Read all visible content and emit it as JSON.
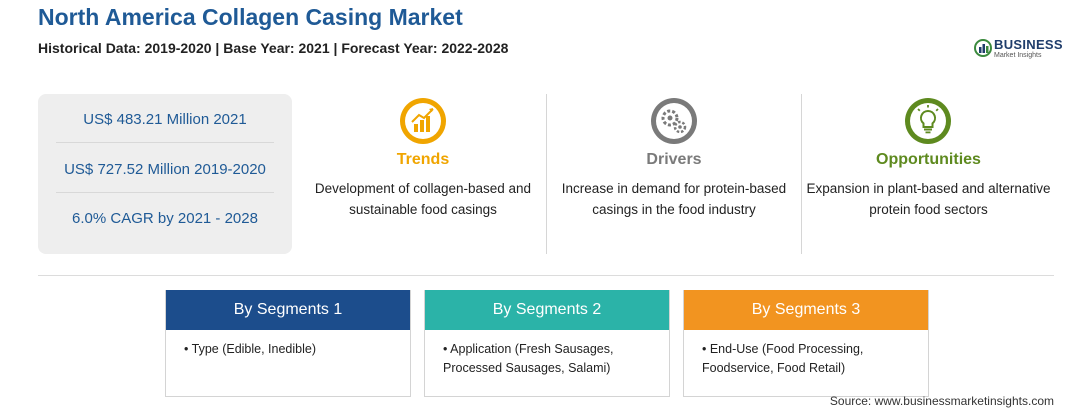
{
  "header": {
    "title": "North America Collagen Casing Market",
    "subtitle": "Historical Data: 2019-2020 | Base Year: 2021 | Forecast Year: 2022-2028"
  },
  "logo": {
    "name": "BUSINESS",
    "tagline": "Market Insights"
  },
  "stats": [
    "US$ 483.21 Million 2021",
    "US$ 727.52 Million 2019-2020",
    "6.0% CAGR by 2021 - 2028"
  ],
  "columns": [
    {
      "label": "Trends",
      "text": "Development of collagen-based and sustainable food casings",
      "color": "#f0a500",
      "icon": "trend-chart-icon"
    },
    {
      "label": "Drivers",
      "text": "Increase in demand for protein-based casings in the food industry",
      "color": "#7a7a7a",
      "icon": "gears-icon"
    },
    {
      "label": "Opportunities",
      "text": "Expansion in plant-based and alternative protein food sectors",
      "color": "#5e8a1f",
      "icon": "lightbulb-icon"
    }
  ],
  "segments": [
    {
      "title": "By Segments 1",
      "text": "• Type (Edible, Inedible)",
      "color": "#1c4d8c"
    },
    {
      "title": "By Segments 2",
      "text": "• Application (Fresh Sausages, Processed Sausages, Salami)",
      "color": "#2bb3a8"
    },
    {
      "title": "By Segments 3",
      "text": "• End-Use (Food Processing, Foodservice, Food Retail)",
      "color": "#f29420"
    }
  ],
  "source": "Source: www.businessmarketinsights.com"
}
